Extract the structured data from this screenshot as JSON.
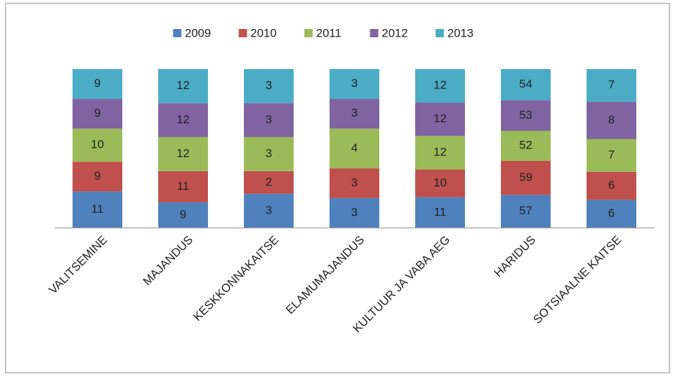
{
  "chart_data": {
    "type": "bar",
    "stacking": "percent",
    "legend": "top",
    "categories": [
      "VALITSEMINE",
      "MAJANDUS",
      "KESKKONNAKAITSE",
      "ELAMUMAJANDUS",
      "KULTUUR JA VABA AEG",
      "HARIDUS",
      "SOTSIAALNE KAITSE"
    ],
    "series": [
      {
        "name": "2009",
        "color": "#4f81bd",
        "values": [
          11,
          9,
          3,
          3,
          11,
          57,
          6
        ]
      },
      {
        "name": "2010",
        "color": "#c0504d",
        "values": [
          9,
          11,
          2,
          3,
          10,
          59,
          6
        ]
      },
      {
        "name": "2011",
        "color": "#9bbb59",
        "values": [
          10,
          12,
          3,
          4,
          12,
          52,
          7
        ]
      },
      {
        "name": "2012",
        "color": "#8064a2",
        "values": [
          9,
          12,
          3,
          3,
          12,
          53,
          8
        ]
      },
      {
        "name": "2013",
        "color": "#4bacc6",
        "values": [
          9,
          12,
          3,
          3,
          12,
          54,
          7
        ]
      }
    ]
  }
}
